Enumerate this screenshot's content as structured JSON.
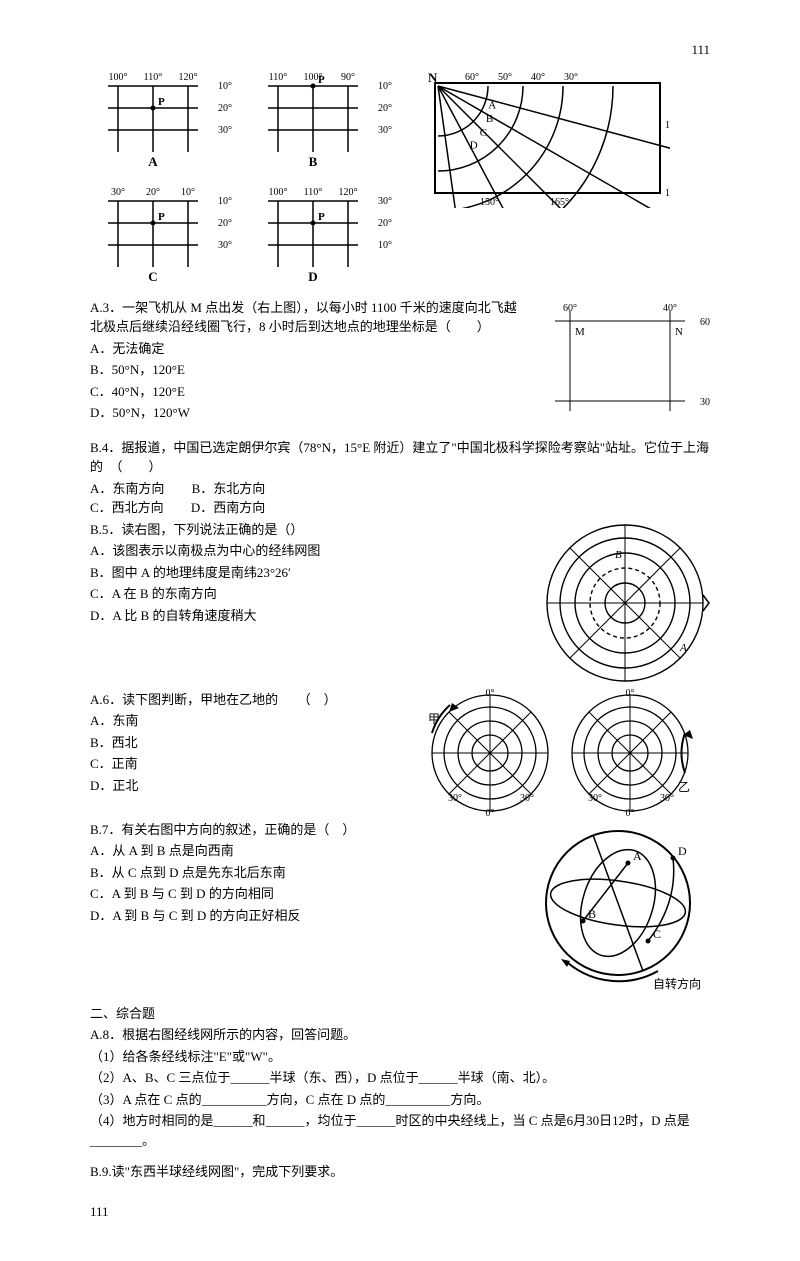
{
  "page": {
    "num": "111"
  },
  "grids": {
    "A": {
      "cols": [
        "100°",
        "110°",
        "120°"
      ],
      "rows": [
        "10°",
        "20°",
        "30°"
      ],
      "P": [
        1,
        1
      ],
      "label": "A"
    },
    "B": {
      "cols": [
        "110°",
        "100°",
        "90°"
      ],
      "rows": [
        "10°",
        "20°",
        "30°"
      ],
      "P": [
        1,
        0
      ],
      "label": "B"
    },
    "C": {
      "cols": [
        "30°",
        "20°",
        "10°"
      ],
      "rows": [
        "10°",
        "20°",
        "30°"
      ],
      "P": [
        1,
        1
      ],
      "label": "C"
    },
    "D": {
      "cols": [
        "100°",
        "110°",
        "120°"
      ],
      "rows": [
        "30°",
        "20°",
        "10°"
      ],
      "P": [
        1,
        1
      ],
      "label": "D"
    }
  },
  "polar": {
    "N": "N",
    "lons": [
      "60°",
      "50°",
      "40°",
      "30°"
    ],
    "rlats": [
      "165°",
      "180°"
    ],
    "blons": [
      "150°",
      "165°"
    ],
    "pts": [
      "A",
      "B",
      "C",
      "D"
    ]
  },
  "q3": {
    "stem": "A.3．一架飞机从 M 点出发（右上图），以每小时 1100 千米的速度向北飞越北极点后继续沿经线圈飞行，8 小时后到达地点的地理坐标是（　　）",
    "A": "A．无法确定",
    "B": "B．50°N，120°E",
    "C": "C．40°N，120°E",
    "D": "D．50°N，120°W",
    "fig": {
      "cols": [
        "60°",
        "40°"
      ],
      "rows": [
        "60°",
        "30°"
      ],
      "M": "M",
      "N": "N"
    }
  },
  "q4": {
    "stem": "B.4．据报道，中国已选定朗伊尔宾（78°N，15°E 附近）建立了\"中国北极科学探险考察站\"站址。它位于上海的　（　　）",
    "A": "A．东南方向",
    "B": "B．东北方向",
    "C": "C．西北方向",
    "D": "D．西南方向"
  },
  "q5": {
    "stem": "B.5．读右图，下列说法正确的是（）",
    "A": "A．该图表示以南极点为中心的经纬网图",
    "B": "B．图中 A 的地理纬度是南纬23°26′",
    "C": "C．A 在 B 的东南方向",
    "D": "D．A 比 B 的自转角速度稍大",
    "fig": {
      "A": "A",
      "B": "B"
    }
  },
  "q6": {
    "stem": "A.6．读下图判断，甲地在乙地的　　（　）",
    "A": "A．东南",
    "B": "B．西北",
    "C": "C．正南",
    "D": "D．正北",
    "fig": {
      "jia": "甲",
      "yi": "乙",
      "deg": [
        "0°",
        "30°"
      ]
    }
  },
  "q7": {
    "stem": "B.7．有关右图中方向的叙述，正确的是（　）",
    "A": "A．从 A 到 B 点是向西南",
    "B": "B．从 C 点到 D 点是先东北后东南",
    "C": "C．A 到 B 与 C 到 D 的方向相同",
    "D": "D．A 到 B 与 C 到 D 的方向正好相反",
    "fig": {
      "A": "A",
      "B": "B",
      "C": "C",
      "D": "D",
      "rot": "自转方向"
    }
  },
  "sec2": {
    "title": "二、综合题"
  },
  "q8": {
    "stem": "A.8．根据右图经线网所示的内容，回答问题。",
    "p1": "（1）给各条经线标注\"E\"或\"W\"。",
    "p2": "（2）A、B、C 三点位于______半球（东、西），D 点位于______半球（南、北）。",
    "p3": "（3）A 点在 C 点的__________方向，C 点在 D 点的__________方向。",
    "p4": "（4）地方时相同的是______和______，均位于______时区的中央经线上，当 C 点是6月30日12时，D 点是________。"
  },
  "q9": {
    "stem": "B.9.读\"东西半球经线网图\"，完成下列要求。"
  }
}
